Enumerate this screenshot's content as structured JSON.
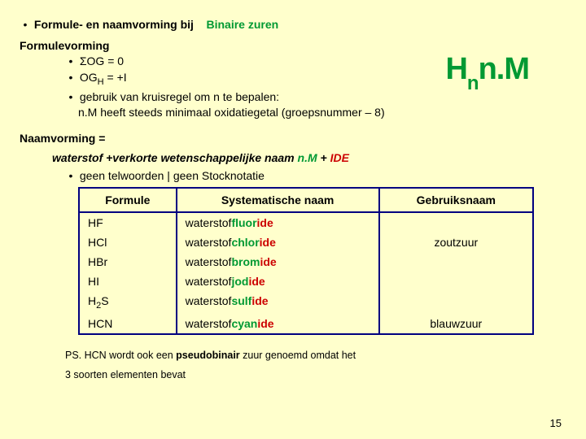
{
  "title": {
    "prefix_bullet": "•",
    "prefix_text": "Formule- en naamvorming  bij",
    "highlight": "Binaire zuren"
  },
  "formulevorming": {
    "heading": "Formulevorming",
    "items": [
      {
        "bullet": "•",
        "text_html": "ΣOG = 0"
      },
      {
        "bullet": "•",
        "text_html": "OG<span class=\"hsub\">H</span> = +I"
      },
      {
        "bullet": "•",
        "text_html": "gebruik van kruisregel om n te bepalen:"
      }
    ],
    "continuation": "n.M heeft steeds minimaal oxidatiegetal (groepsnummer – 8)"
  },
  "float_formula": {
    "base": "H",
    "sub": "n",
    "rest": "n.M"
  },
  "naamvorming": {
    "heading": "Naamvorming =",
    "rule_plain1": "waterstof +verkorte wetenschappelijke naam ",
    "rule_green": "n.M",
    "rule_plain2": "  + ",
    "rule_red": "IDE"
  },
  "note": {
    "bullet": "•",
    "text": "geen telwoorden | geen Stocknotatie"
  },
  "table": {
    "headers": {
      "formula": "Formule",
      "sysname": "Systematische naam",
      "usename": "Gebruiksnaam"
    },
    "rows": [
      {
        "formula_html": "HF",
        "sys_prefix": "waterstof",
        "stem": "fluor",
        "suffix": "ide",
        "usename": ""
      },
      {
        "formula_html": "HCl",
        "sys_prefix": "waterstof",
        "stem": "chlor",
        "suffix": "ide",
        "usename": "zoutzuur"
      },
      {
        "formula_html": "HBr",
        "sys_prefix": "waterstof",
        "stem": "brom",
        "suffix": "ide",
        "usename": ""
      },
      {
        "formula_html": "HI",
        "sys_prefix": "waterstof",
        "stem": "jod",
        "suffix": "ide",
        "usename": ""
      },
      {
        "formula_html": "H<span class=\"chem-sub\">2</span>S",
        "sys_prefix": "waterstof",
        "stem": "sulf",
        "suffix": "ide",
        "usename": ""
      },
      {
        "formula_html": "HCN",
        "sys_prefix": "waterstof",
        "stem": "cyan",
        "suffix": "ide",
        "usename": "blauwzuur"
      }
    ]
  },
  "ps": {
    "line1_pre": "PS. HCN wordt ook een ",
    "line1_bold": "pseudobinair",
    "line1_post": " zuur genoemd omdat het",
    "line2": "3 soorten elementen bevat"
  },
  "page_number": "15",
  "colors": {
    "background": "#ffffcc",
    "green": "#009933",
    "red": "#cc0000",
    "table_border": "#000080"
  }
}
